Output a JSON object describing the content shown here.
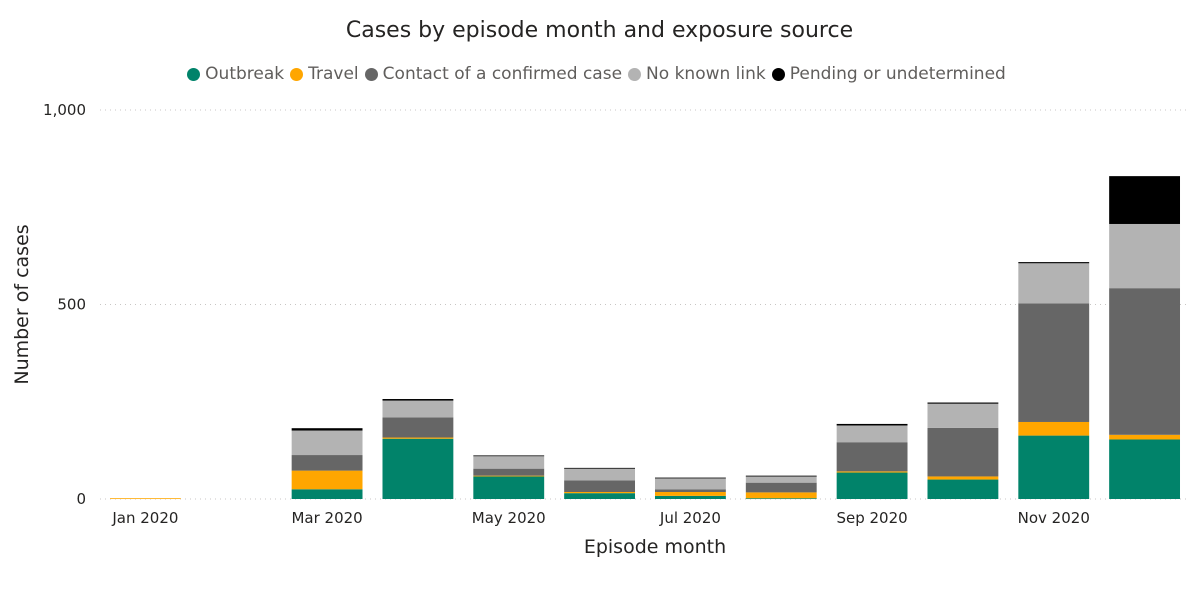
{
  "chart_data": {
    "type": "bar",
    "stacked": true,
    "title": "Cases by episode month and exposure source",
    "xlabel": "Episode month",
    "ylabel": "Number of cases",
    "ylim": [
      0,
      1000
    ],
    "yticks": [
      0,
      500,
      1000
    ],
    "ytick_labels": [
      "0",
      "500",
      "1,000"
    ],
    "grid": true,
    "legend_position": "top",
    "categories": [
      "Jan 2020",
      "Feb 2020",
      "Mar 2020",
      "Apr 2020",
      "May 2020",
      "Jun 2020",
      "Jul 2020",
      "Aug 2020",
      "Sep 2020",
      "Oct 2020",
      "Nov 2020",
      "Dec 2020"
    ],
    "x_tick_labels": [
      "Jan 2020",
      "",
      "Mar 2020",
      "",
      "May 2020",
      "",
      "Jul 2020",
      "",
      "Sep 2020",
      "",
      "Nov 2020",
      ""
    ],
    "series": [
      {
        "name": "Outbreak",
        "color": "#01836a",
        "values": [
          0,
          0,
          25,
          155,
          58,
          15,
          8,
          2,
          68,
          50,
          163,
          153
        ]
      },
      {
        "name": "Travel",
        "color": "#ffa600",
        "values": [
          2,
          0,
          48,
          3,
          2,
          3,
          10,
          15,
          3,
          8,
          35,
          12
        ]
      },
      {
        "name": "Contact of a confirmed case",
        "color": "#666666",
        "values": [
          0,
          0,
          40,
          52,
          18,
          30,
          7,
          25,
          75,
          125,
          305,
          377
        ]
      },
      {
        "name": "No known link",
        "color": "#b3b3b3",
        "values": [
          0,
          0,
          63,
          43,
          32,
          30,
          28,
          17,
          43,
          62,
          103,
          165
        ]
      },
      {
        "name": "Pending or undetermined",
        "color": "#000000",
        "values": [
          0,
          0,
          6,
          4,
          2,
          2,
          2,
          1,
          4,
          3,
          3,
          123
        ]
      }
    ]
  }
}
